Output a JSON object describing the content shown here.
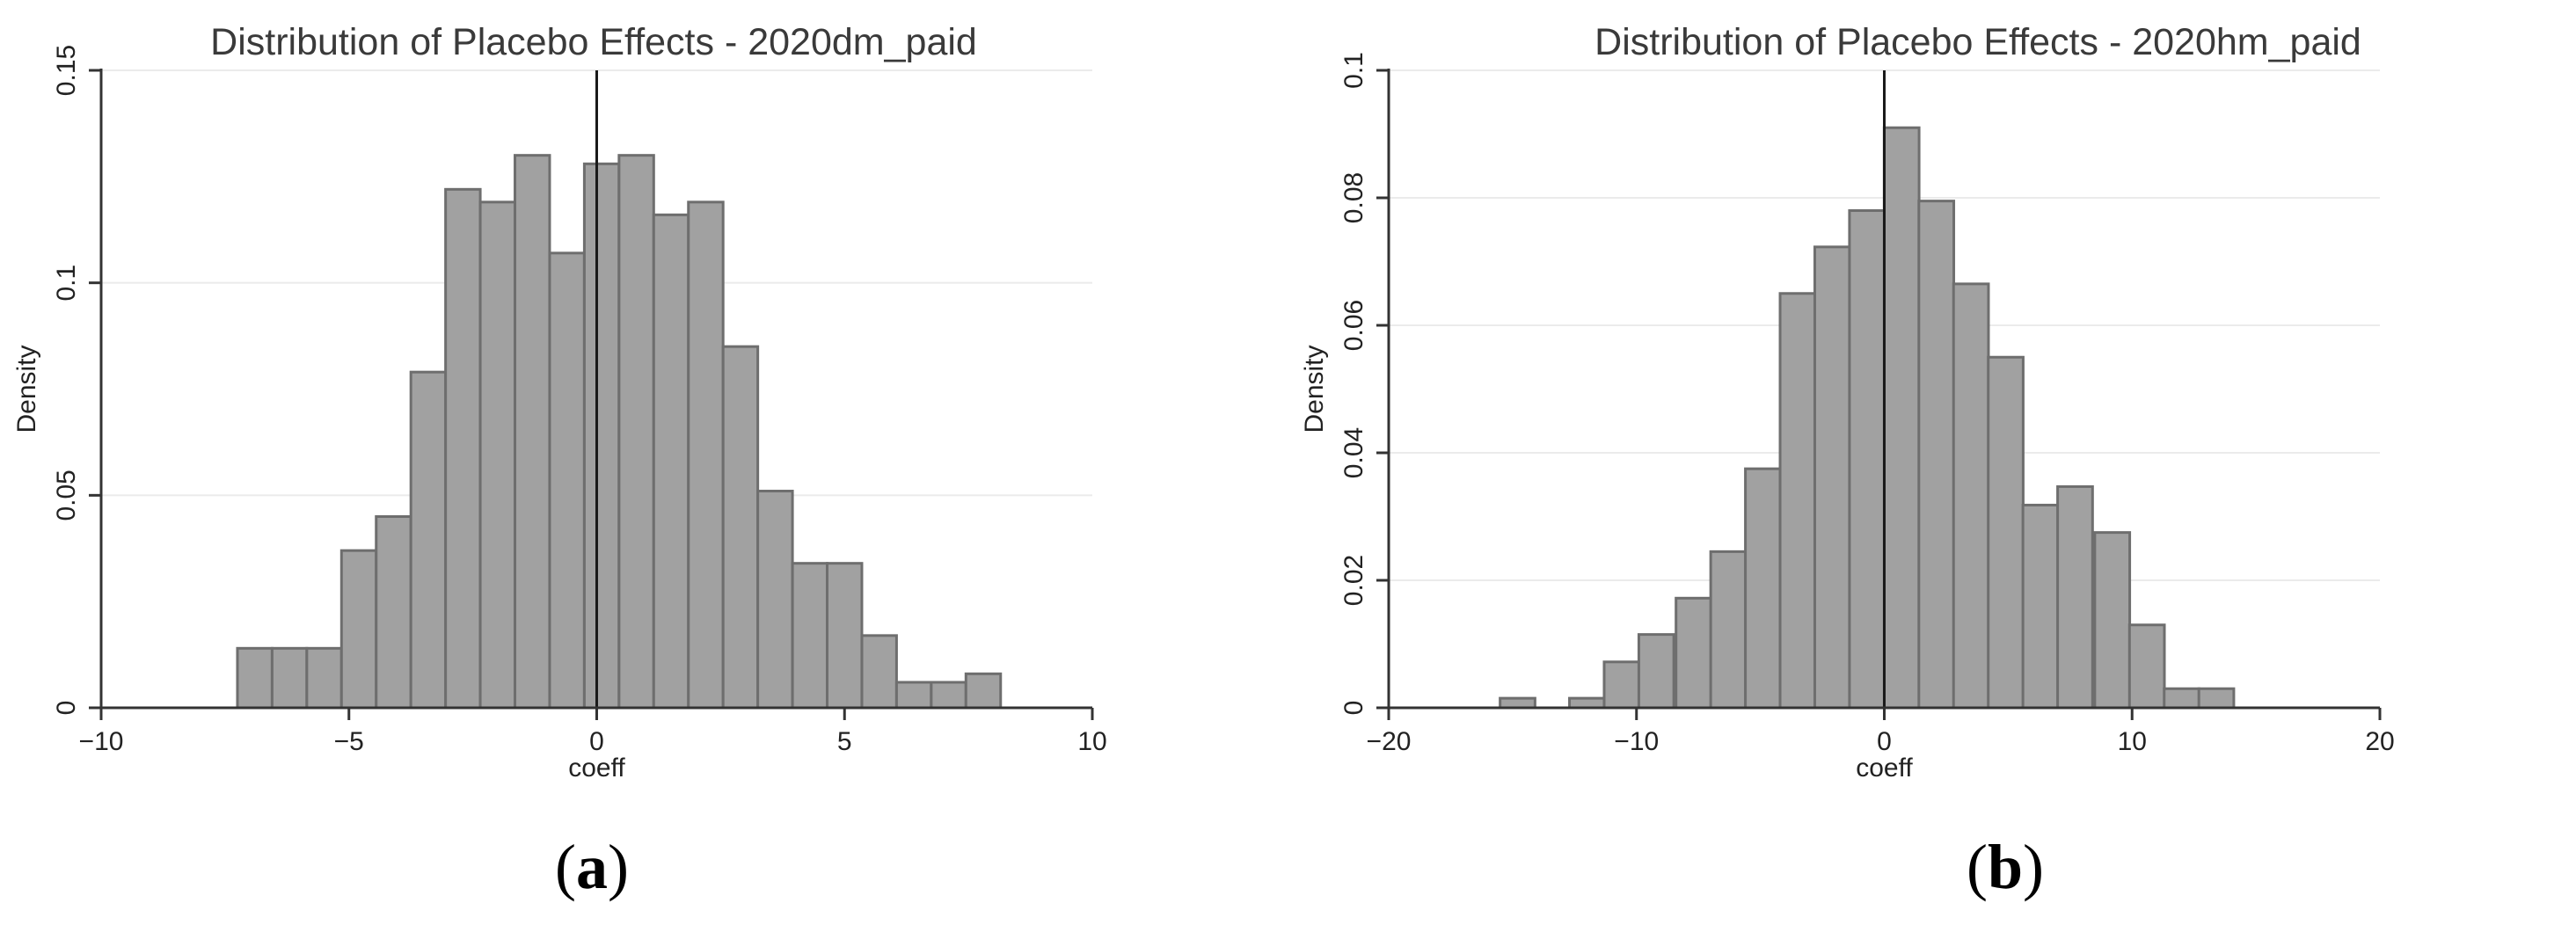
{
  "chart_data": [
    {
      "type": "bar",
      "title": "Distribution of Placebo Effects - 2020dm_paid",
      "xlabel": "coeff",
      "ylabel": "Density",
      "panel_label": "a",
      "xlim": [
        -10,
        10
      ],
      "ylim": [
        0,
        0.15
      ],
      "xticks": [
        -10,
        -5,
        0,
        5,
        10
      ],
      "xtick_labels": [
        "−10",
        "−5",
        "0",
        "5",
        "10"
      ],
      "yticks": [
        0,
        0.05,
        0.1,
        0.15
      ],
      "ytick_labels": [
        "0",
        "0.05",
        "0.1",
        "0.15"
      ],
      "grid": true,
      "bin_width": 0.7,
      "x": [
        -6.9,
        -6.2,
        -5.5,
        -4.8,
        -4.1,
        -3.4,
        -2.7,
        -2.0,
        -1.3,
        -0.6,
        0.1,
        0.8,
        1.5,
        2.2,
        2.9,
        3.6,
        4.3,
        5.0,
        5.7,
        6.4,
        7.1,
        7.8
      ],
      "values": [
        0.014,
        0.014,
        0.014,
        0.037,
        0.045,
        0.079,
        0.122,
        0.119,
        0.13,
        0.107,
        0.128,
        0.13,
        0.116,
        0.119,
        0.085,
        0.051,
        0.034,
        0.034,
        0.017,
        0.006,
        0.006,
        0.008
      ],
      "vline_x": 0,
      "bar_color": "#a1a1a1",
      "bar_edge_color": "#6e6e6e"
    },
    {
      "type": "bar",
      "title": "Distribution of Placebo Effects - 2020hm_paid",
      "xlabel": "coeff",
      "ylabel": "Density",
      "panel_label": "b",
      "xlim": [
        -20,
        20
      ],
      "ylim": [
        0,
        0.1
      ],
      "xticks": [
        -20,
        -10,
        0,
        10,
        20
      ],
      "xtick_labels": [
        "−20",
        "−10",
        "0",
        "10",
        "20"
      ],
      "yticks": [
        0,
        0.02,
        0.04,
        0.06,
        0.08,
        0.1
      ],
      "ytick_labels": [
        "0",
        "0.02",
        "0.04",
        "0.06",
        "0.08",
        "0.1"
      ],
      "grid": true,
      "bin_width": 1.41,
      "x": [
        -14.8,
        -12.0,
        -10.6,
        -9.2,
        -7.7,
        -6.3,
        -4.9,
        -3.5,
        -2.1,
        -0.7,
        0.7,
        2.1,
        3.5,
        4.9,
        6.3,
        7.7,
        9.2,
        10.6,
        12.0,
        13.4
      ],
      "values": [
        0.0015,
        0.0015,
        0.0072,
        0.0115,
        0.0172,
        0.0245,
        0.0375,
        0.065,
        0.0723,
        0.078,
        0.091,
        0.0795,
        0.0665,
        0.055,
        0.0318,
        0.0347,
        0.0275,
        0.013,
        0.003,
        0.003
      ],
      "vline_x": 0,
      "bar_color": "#a1a1a1",
      "bar_edge_color": "#6e6e6e"
    }
  ]
}
